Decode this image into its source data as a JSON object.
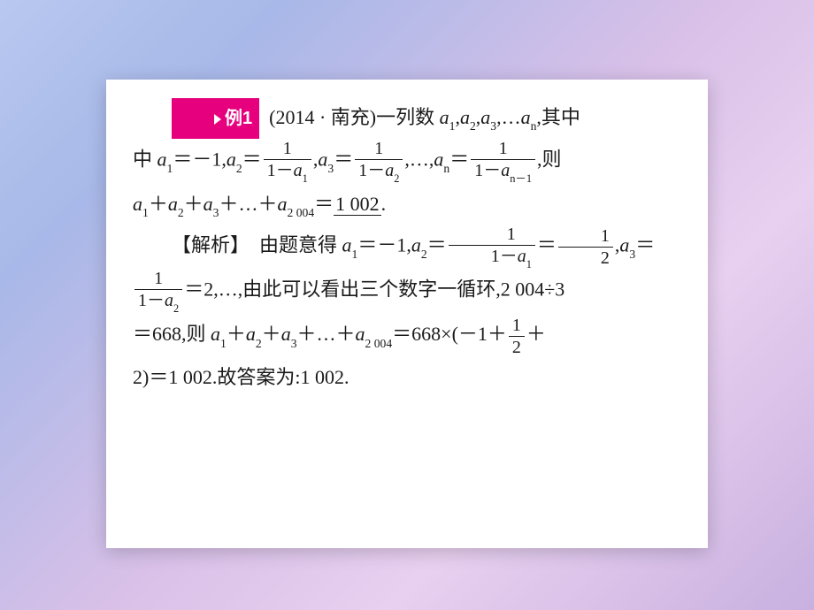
{
  "colors": {
    "badge_bg": "#e6007e",
    "badge_fg": "#ffffff",
    "text": "#1a1a1a",
    "page_bg": "#ffffff",
    "outer_grad_from": "#b8c8f0",
    "outer_grad_to": "#c8b0e0"
  },
  "typography": {
    "body_fontsize_pt": 22,
    "badge_fontsize_pt": 20,
    "frac_fontsize_pt": 20,
    "font_family": "SimSun / STSong serif"
  },
  "badge": {
    "label": "例1",
    "icon": "triangle-play"
  },
  "problem": {
    "source": "(2014 · 南充)",
    "stem_a": "一列数 ",
    "seq": "a₁,a₂,a₃,…aₙ",
    "stem_b": ",其中 ",
    "a1": "a₁＝－1,",
    "a2_lhs": "a₂＝",
    "a2_num": "1",
    "a2_den": "1－a₁",
    "comma1": ",",
    "a3_lhs": "a₃＝",
    "a3_num": "1",
    "a3_den": "1－a₂",
    "ellipsis": ",…,",
    "an_lhs": "aₙ＝",
    "an_num": "1",
    "an_den": "1－aₙ₋₁",
    "then": ",则",
    "sum": "a₁＋a₂＋a₃＋…＋a₂ ₀₀₄＝",
    "answer": "1 002",
    "period": "."
  },
  "solution": {
    "heading": "【解析】",
    "t1": "由题意得 ",
    "a1": "a₁＝－1,",
    "a2_lhs": "a₂＝",
    "a2_num": "1",
    "a2_den": "1－a₁",
    "eq": "＝",
    "half_num": "1",
    "half_den": "2",
    "comma1": ",",
    "a3_lhs": "a₃＝",
    "a3_num": "1",
    "a3_den": "1－a₂",
    "a3_val": "＝2,…,",
    "t2": "由此可以看出三个数字一循环,",
    "div": "2 004÷3＝668,",
    "then": "则 ",
    "sum_lhs": "a₁＋a₂＋a₃＋…＋a₂ ₀₀₄＝",
    "mult": "668×(－1＋",
    "half2_num": "1",
    "half2_den": "2",
    "plus2": "＋2)＝1 002.",
    "final": "故答案为:1 002."
  }
}
